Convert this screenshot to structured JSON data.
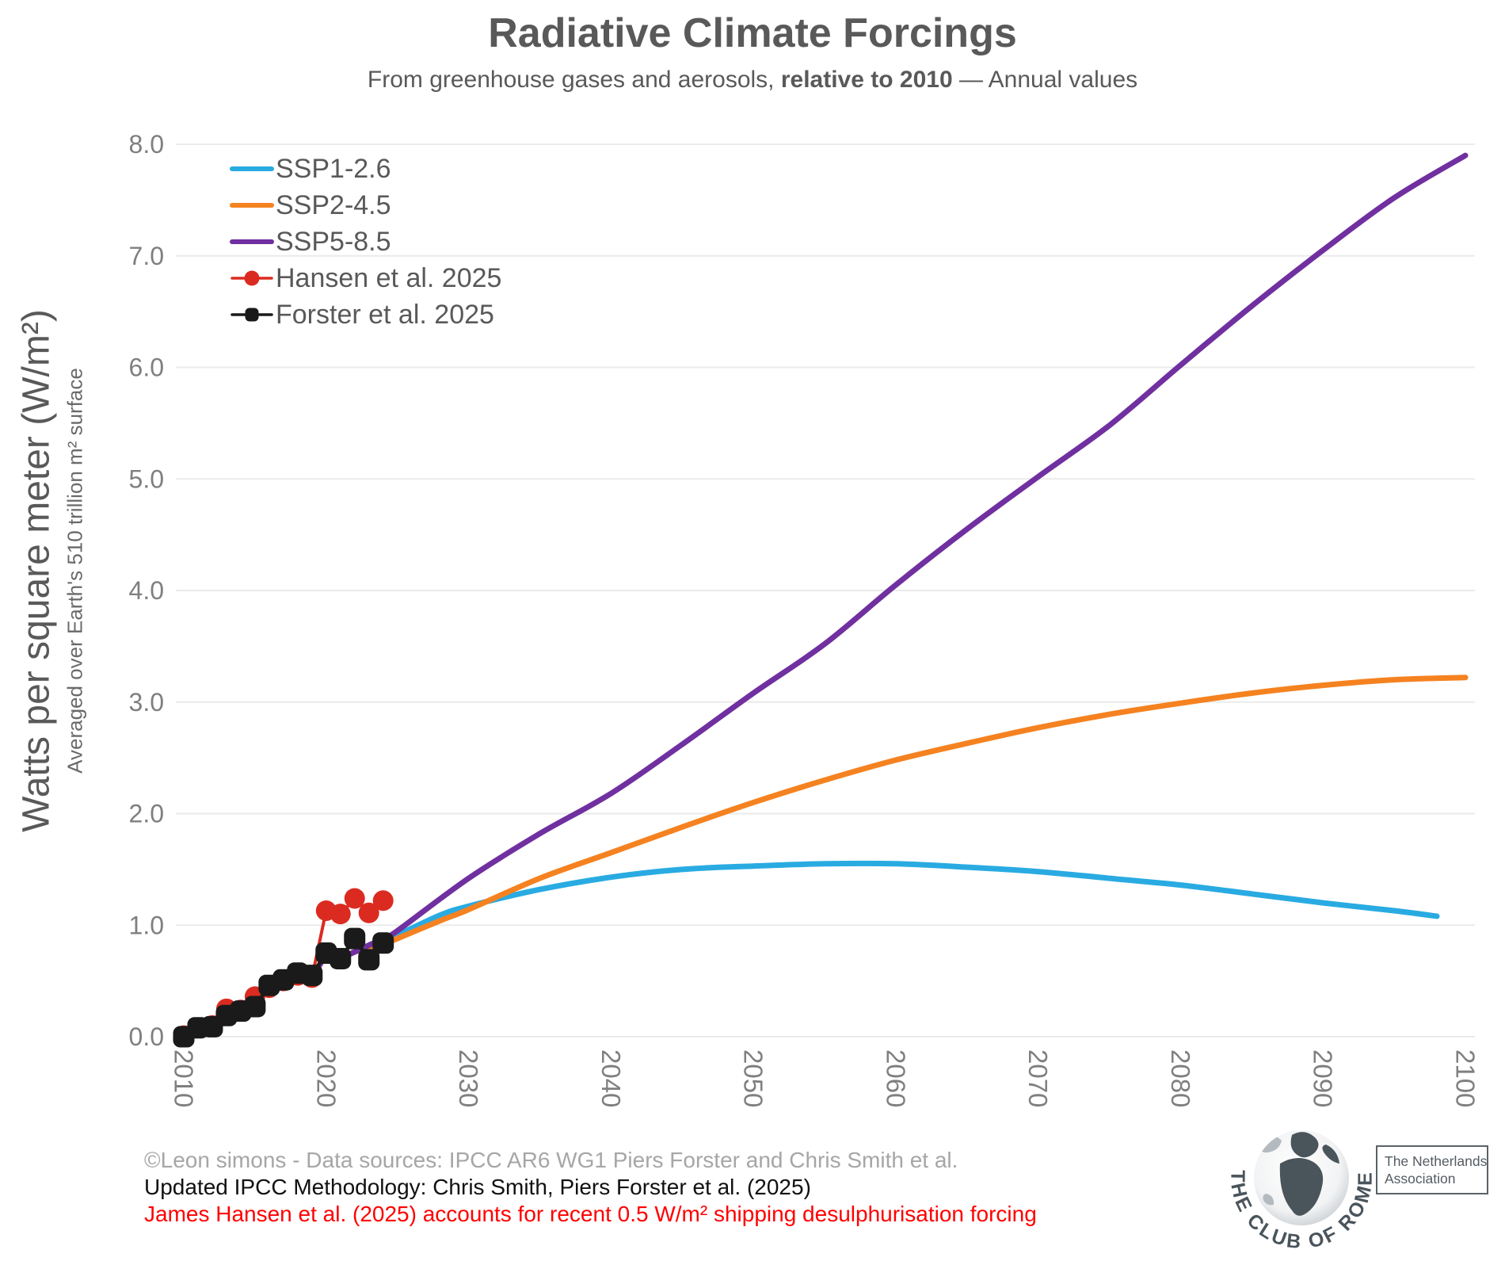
{
  "header": {
    "title": "Radiative Climate Forcings",
    "subtitle_pre": "From greenhouse gases and aerosols, ",
    "subtitle_bold": "relative to 2010",
    "subtitle_post": " — Annual values"
  },
  "y_axis": {
    "title_main": "Watts per square meter (W/m²)",
    "title_sub": "Averaged over Earth's 510 trillion m² surface",
    "tick_color": "#7f7f7f"
  },
  "x_axis": {
    "tick_color": "#7f7f7f"
  },
  "legend": {
    "items": [
      "SSP1-2.6",
      "SSP2-4.5",
      "SSP5-8.5",
      "Hansen et al. 2025",
      "Forster et al. 2025"
    ],
    "text_color": "#595959"
  },
  "chart_data": {
    "type": "line",
    "title": "Radiative Climate Forcings",
    "xlabel": "",
    "ylabel": "Watts per square meter (W/m²)",
    "xlim": [
      2010,
      2100
    ],
    "ylim": [
      0,
      8
    ],
    "x_ticks": [
      "2010",
      "2020",
      "2030",
      "2040",
      "2050",
      "2060",
      "2070",
      "2080",
      "2090",
      "2100"
    ],
    "y_ticks": [
      "0.0",
      "1.0",
      "2.0",
      "3.0",
      "4.0",
      "5.0",
      "6.0",
      "7.0",
      "8.0"
    ],
    "grid": "horizontal",
    "grid_color": "#ebebeb",
    "legend_position": "top-left",
    "series": [
      {
        "name": "SSP1-2.6",
        "color": "#29abe2",
        "width": 7,
        "smooth": true,
        "marker": "none",
        "points": [
          [
            2010,
            0.0
          ],
          [
            2011,
            0.07
          ],
          [
            2012,
            0.1
          ],
          [
            2013,
            0.19
          ],
          [
            2014,
            0.23
          ],
          [
            2015,
            0.28
          ],
          [
            2016,
            0.45
          ],
          [
            2017,
            0.51
          ],
          [
            2018,
            0.56
          ],
          [
            2019,
            0.55
          ],
          [
            2020,
            0.72
          ],
          [
            2021,
            0.71
          ],
          [
            2022,
            0.76
          ],
          [
            2023,
            0.8
          ],
          [
            2024,
            0.85
          ],
          [
            2025,
            0.91
          ],
          [
            2028,
            1.09
          ],
          [
            2030,
            1.17
          ],
          [
            2035,
            1.32
          ],
          [
            2040,
            1.43
          ],
          [
            2045,
            1.5
          ],
          [
            2050,
            1.53
          ],
          [
            2055,
            1.55
          ],
          [
            2060,
            1.55
          ],
          [
            2065,
            1.52
          ],
          [
            2070,
            1.48
          ],
          [
            2075,
            1.42
          ],
          [
            2080,
            1.36
          ],
          [
            2085,
            1.28
          ],
          [
            2090,
            1.2
          ],
          [
            2095,
            1.13
          ],
          [
            2098,
            1.08
          ]
        ]
      },
      {
        "name": "SSP2-4.5",
        "color": "#f58220",
        "width": 7,
        "smooth": true,
        "marker": "none",
        "points": [
          [
            2010,
            0.0
          ],
          [
            2011,
            0.07
          ],
          [
            2012,
            0.1
          ],
          [
            2013,
            0.19
          ],
          [
            2014,
            0.23
          ],
          [
            2015,
            0.28
          ],
          [
            2016,
            0.45
          ],
          [
            2017,
            0.51
          ],
          [
            2018,
            0.56
          ],
          [
            2019,
            0.55
          ],
          [
            2020,
            0.72
          ],
          [
            2021,
            0.71
          ],
          [
            2022,
            0.76
          ],
          [
            2023,
            0.79
          ],
          [
            2024,
            0.83
          ],
          [
            2025,
            0.88
          ],
          [
            2028,
            1.04
          ],
          [
            2030,
            1.14
          ],
          [
            2035,
            1.42
          ],
          [
            2040,
            1.65
          ],
          [
            2045,
            1.88
          ],
          [
            2050,
            2.1
          ],
          [
            2055,
            2.3
          ],
          [
            2060,
            2.48
          ],
          [
            2065,
            2.63
          ],
          [
            2070,
            2.77
          ],
          [
            2075,
            2.89
          ],
          [
            2080,
            2.99
          ],
          [
            2085,
            3.08
          ],
          [
            2090,
            3.15
          ],
          [
            2095,
            3.2
          ],
          [
            2100,
            3.22
          ]
        ]
      },
      {
        "name": "SSP5-8.5",
        "color": "#7030a0",
        "width": 7,
        "smooth": true,
        "marker": "none",
        "points": [
          [
            2010,
            0.0
          ],
          [
            2011,
            0.07
          ],
          [
            2012,
            0.1
          ],
          [
            2013,
            0.19
          ],
          [
            2014,
            0.23
          ],
          [
            2015,
            0.28
          ],
          [
            2016,
            0.45
          ],
          [
            2017,
            0.51
          ],
          [
            2018,
            0.56
          ],
          [
            2019,
            0.55
          ],
          [
            2020,
            0.72
          ],
          [
            2021,
            0.71
          ],
          [
            2022,
            0.76
          ],
          [
            2023,
            0.82
          ],
          [
            2024,
            0.88
          ],
          [
            2025,
            0.95
          ],
          [
            2030,
            1.42
          ],
          [
            2035,
            1.82
          ],
          [
            2040,
            2.18
          ],
          [
            2045,
            2.62
          ],
          [
            2050,
            3.08
          ],
          [
            2055,
            3.52
          ],
          [
            2060,
            4.05
          ],
          [
            2065,
            4.55
          ],
          [
            2070,
            5.02
          ],
          [
            2075,
            5.48
          ],
          [
            2080,
            6.02
          ],
          [
            2085,
            6.55
          ],
          [
            2090,
            7.05
          ],
          [
            2095,
            7.52
          ],
          [
            2100,
            7.9
          ]
        ]
      },
      {
        "name": "Hansen et al. 2025",
        "color": "#db2b21",
        "width": 4,
        "smooth": false,
        "marker": "circle",
        "marker_size": 13,
        "points": [
          [
            2010,
            0.01
          ],
          [
            2011,
            0.08
          ],
          [
            2012,
            0.1
          ],
          [
            2013,
            0.25
          ],
          [
            2014,
            0.24
          ],
          [
            2015,
            0.36
          ],
          [
            2016,
            0.44
          ],
          [
            2017,
            0.5
          ],
          [
            2018,
            0.55
          ],
          [
            2019,
            0.53
          ],
          [
            2020,
            1.13
          ],
          [
            2021,
            1.1
          ],
          [
            2022,
            1.24
          ],
          [
            2023,
            1.11
          ],
          [
            2024,
            1.22
          ]
        ]
      },
      {
        "name": "Forster et al. 2025",
        "color": "#1a1a1a",
        "width": 5,
        "smooth": false,
        "marker": "square",
        "marker_size": 27,
        "points": [
          [
            2010,
            0.0
          ],
          [
            2011,
            0.08
          ],
          [
            2012,
            0.09
          ],
          [
            2013,
            0.19
          ],
          [
            2014,
            0.23
          ],
          [
            2015,
            0.27
          ],
          [
            2016,
            0.46
          ],
          [
            2017,
            0.51
          ],
          [
            2018,
            0.57
          ],
          [
            2019,
            0.55
          ],
          [
            2020,
            0.75
          ],
          [
            2021,
            0.7
          ],
          [
            2022,
            0.88
          ],
          [
            2023,
            0.69
          ],
          [
            2024,
            0.84
          ]
        ]
      }
    ]
  },
  "footer": {
    "lines": [
      {
        "text": "©Leon simons - Data sources: IPCC AR6 WG1 Piers Forster and Chris Smith et al.",
        "color": "#a6a6a6"
      },
      {
        "text": "Updated IPCC Methodology: Chris Smith, Piers Forster et al. (2025)",
        "color": "#111111"
      },
      {
        "text": "James Hansen et al. (2025) accounts for recent 0.5 W/m² shipping desulphurisation forcing",
        "color": "#ff0000"
      }
    ]
  },
  "logo": {
    "arc_text": "THE CLUB OF ROME",
    "box_line1": "The Netherlands",
    "box_line2": "Association",
    "ink_color": "#4a545b"
  }
}
